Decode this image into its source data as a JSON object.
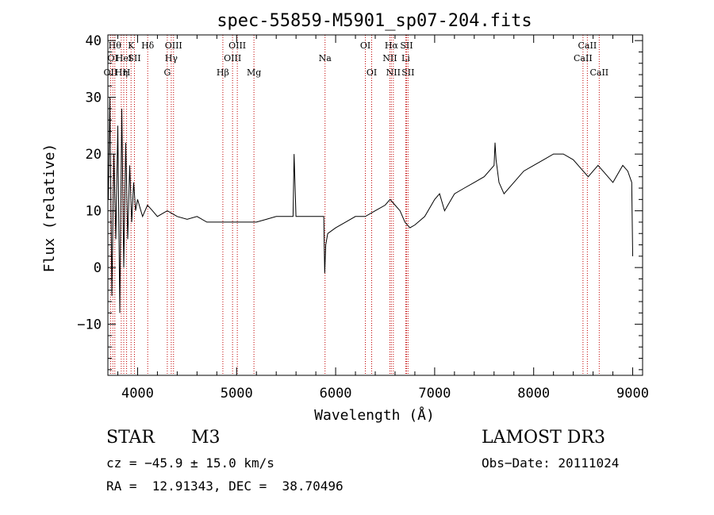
{
  "chart_data": {
    "type": "line",
    "title": "spec-55859-M5901_sp07-204.fits",
    "xlabel": "Wavelength (Å)",
    "ylabel": "Flux (relative)",
    "xlim": [
      3700,
      9100
    ],
    "ylim": [
      -19,
      41
    ],
    "xticks": [
      4000,
      5000,
      6000,
      7000,
      8000,
      9000
    ],
    "yticks": [
      -10,
      0,
      10,
      20,
      30,
      40
    ],
    "ytick_labels": [
      "−10",
      "0",
      "10",
      "20",
      "30",
      "40"
    ],
    "grid": false,
    "series": [
      {
        "name": "flux",
        "x": [
          3705,
          3720,
          3740,
          3760,
          3780,
          3800,
          3820,
          3840,
          3860,
          3880,
          3900,
          3920,
          3940,
          3960,
          3980,
          4000,
          4050,
          4100,
          4150,
          4200,
          4300,
          4400,
          4500,
          4600,
          4700,
          4800,
          4900,
          5000,
          5100,
          5200,
          5300,
          5400,
          5500,
          5570,
          5580,
          5600,
          5700,
          5800,
          5880,
          5890,
          5900,
          5920,
          6000,
          6100,
          6200,
          6300,
          6400,
          6500,
          6550,
          6600,
          6650,
          6700,
          6750,
          6800,
          6900,
          7000,
          7050,
          7100,
          7200,
          7300,
          7400,
          7500,
          7600,
          7610,
          7620,
          7650,
          7700,
          7800,
          7900,
          8000,
          8100,
          8200,
          8300,
          8400,
          8500,
          8550,
          8600,
          8650,
          8700,
          8800,
          8900,
          8950,
          8990,
          9000
        ],
        "y": [
          12,
          30,
          -5,
          20,
          5,
          25,
          -8,
          28,
          0,
          22,
          5,
          18,
          8,
          15,
          10,
          12,
          9,
          11,
          10,
          9,
          10,
          9,
          8.5,
          9,
          8,
          8,
          8,
          8,
          8,
          8,
          8.5,
          9,
          9,
          9,
          20,
          9,
          9,
          9,
          9,
          -1,
          4,
          6,
          7,
          8,
          9,
          9,
          10,
          11,
          12,
          11,
          10,
          8,
          7,
          7.5,
          9,
          12,
          13,
          10,
          13,
          14,
          15,
          16,
          18,
          22,
          19,
          15,
          13,
          15,
          17,
          18,
          19,
          20,
          20,
          19,
          17,
          16,
          17,
          18,
          17,
          15,
          18,
          17,
          15,
          2
        ]
      }
    ],
    "spectral_lines": [
      {
        "wavelength": 3727,
        "label": "OII",
        "row": 3
      },
      {
        "wavelength": 3750,
        "label": "OI",
        "row": 2
      },
      {
        "wavelength": 3770,
        "label": "Hθ",
        "row": 1
      },
      {
        "wavelength": 3835,
        "label": "Hη",
        "row": 3
      },
      {
        "wavelength": 3860,
        "label": "HeI",
        "row": 2
      },
      {
        "wavelength": 3889,
        "label": "H",
        "row": 3
      },
      {
        "wavelength": 3934,
        "label": "K",
        "row": 1
      },
      {
        "wavelength": 3968,
        "label": "SII",
        "row": 2
      },
      {
        "wavelength": 4102,
        "label": "Hδ",
        "row": 1
      },
      {
        "wavelength": 4300,
        "label": "G",
        "row": 3
      },
      {
        "wavelength": 4340,
        "label": "Hγ",
        "row": 2
      },
      {
        "wavelength": 4363,
        "label": "OIII",
        "row": 1
      },
      {
        "wavelength": 4861,
        "label": "Hβ",
        "row": 3
      },
      {
        "wavelength": 4959,
        "label": "OIII",
        "row": 2
      },
      {
        "wavelength": 5007,
        "label": "OIII",
        "row": 1
      },
      {
        "wavelength": 5175,
        "label": "Mg",
        "row": 3
      },
      {
        "wavelength": 5893,
        "label": "Na",
        "row": 2
      },
      {
        "wavelength": 6300,
        "label": "OI",
        "row": 1
      },
      {
        "wavelength": 6364,
        "label": "OI",
        "row": 3
      },
      {
        "wavelength": 6548,
        "label": "NII",
        "row": 2
      },
      {
        "wavelength": 6563,
        "label": "Hα",
        "row": 1
      },
      {
        "wavelength": 6583,
        "label": "NII",
        "row": 3
      },
      {
        "wavelength": 6708,
        "label": "Li",
        "row": 2
      },
      {
        "wavelength": 6716,
        "label": "SII",
        "row": 1
      },
      {
        "wavelength": 6731,
        "label": "SII",
        "row": 3
      },
      {
        "wavelength": 8498,
        "label": "CaII",
        "row": 2
      },
      {
        "wavelength": 8542,
        "label": "CaII",
        "row": 1
      },
      {
        "wavelength": 8662,
        "label": "CaII",
        "row": 3
      }
    ]
  },
  "info": {
    "object_class": "STAR",
    "subclass": "M3",
    "survey": "LAMOST DR3",
    "cz": "cz = −45.9 ± 15.0 km/s",
    "obs_date": "Obs−Date: 20111024",
    "coords": "RA =  12.91343, DEC =  38.70496"
  },
  "colors": {
    "line": "#000000",
    "marker": "#c00000",
    "background": "#ffffff"
  }
}
